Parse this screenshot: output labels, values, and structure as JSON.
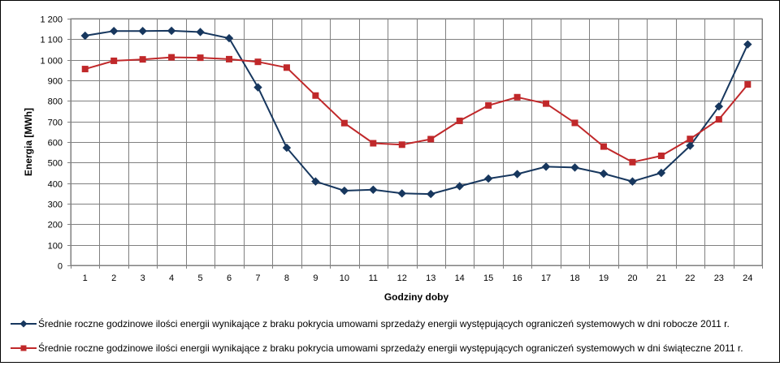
{
  "chart_data": {
    "type": "line",
    "title": "",
    "xlabel": "Godziny doby",
    "ylabel": "Energia [MWh]",
    "ylim": [
      0,
      1200
    ],
    "yticks": [
      0,
      100,
      200,
      300,
      400,
      500,
      600,
      700,
      800,
      900,
      1000,
      1100,
      1200
    ],
    "ytick_labels": [
      "0",
      "100",
      "200",
      "300",
      "400",
      "500",
      "600",
      "700",
      "800",
      "900",
      "1 000",
      "1 100",
      "1 200"
    ],
    "grid": true,
    "legend_position": "bottom",
    "categories": [
      "1",
      "2",
      "3",
      "4",
      "5",
      "6",
      "7",
      "8",
      "9",
      "10",
      "11",
      "12",
      "13",
      "14",
      "15",
      "16",
      "17",
      "18",
      "19",
      "20",
      "21",
      "22",
      "23",
      "24"
    ],
    "series": [
      {
        "name": "Średnie roczne godzinowe ilości energii wynikające z braku pokrycia umowami sprzedaży energii występujących ograniczeń systemowych w dni robocze 2011 r.",
        "color": "#17375E",
        "marker": "diamond",
        "values": [
          1117,
          1140,
          1140,
          1141,
          1135,
          1105,
          866,
          572,
          408,
          363,
          368,
          350,
          347,
          385,
          422,
          444,
          480,
          476,
          446,
          408,
          450,
          582,
          773,
          1075
        ]
      },
      {
        "name": "Średnie roczne godzinowe ilości energii wynikające z braku pokrycia umowami sprzedaży energii występujących ograniczeń systemowych w dni świąteczne 2011 r.",
        "color": "#C0282A",
        "marker": "square",
        "values": [
          955,
          995,
          1002,
          1012,
          1010,
          1003,
          990,
          962,
          826,
          692,
          594,
          587,
          614,
          703,
          778,
          818,
          787,
          693,
          578,
          502,
          533,
          615,
          710,
          880
        ]
      }
    ]
  }
}
